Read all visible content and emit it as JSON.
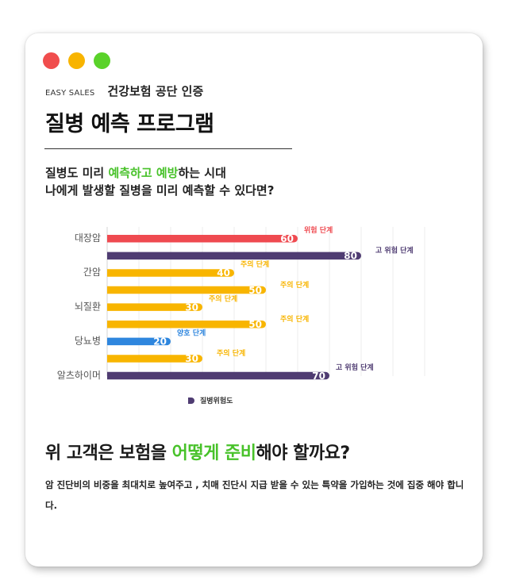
{
  "window_dots": [
    {
      "name": "close",
      "color": "#f04d4d"
    },
    {
      "name": "minimize",
      "color": "#f8b400"
    },
    {
      "name": "maximize",
      "color": "#5ad22a"
    }
  ],
  "header": {
    "brand": "EASY SALES",
    "certification": "건강보험 공단 인증",
    "title": "질병 예측 프로그램"
  },
  "intro": {
    "line1_pre": "질병도 미리 ",
    "line1_highlight": "예측하고 예방",
    "line1_post": "하는 시대",
    "line2": "나에게 발생할 질병을 미리 예측할 수 있다면?"
  },
  "chart_data": {
    "type": "bar",
    "orientation": "horizontal",
    "xlim": [
      0,
      100
    ],
    "grid": true,
    "legend": {
      "label": "질병위험도",
      "color": "#4f3c72",
      "position": "bottom"
    },
    "categories": [
      "대장암",
      "간암",
      "뇌질환",
      "당뇨병",
      "알츠하이머"
    ],
    "bars": [
      {
        "category": "대장암",
        "value": 60,
        "label": "위험 단계",
        "color": "#ef4a50"
      },
      {
        "category": "대장암",
        "value": 80,
        "label": "고 위험 단계",
        "color": "#4f3c72"
      },
      {
        "category": "간암",
        "value": 40,
        "label": "주의 단계",
        "color": "#f8b500"
      },
      {
        "category": "간암",
        "value": 50,
        "label": "주의 단계",
        "color": "#f8b500"
      },
      {
        "category": "뇌질환",
        "value": 30,
        "label": "주의 단계",
        "color": "#f8b500"
      },
      {
        "category": "뇌질환",
        "value": 50,
        "label": "주의 단계",
        "color": "#f8b500"
      },
      {
        "category": "당뇨병",
        "value": 20,
        "label": "양호 단계",
        "color": "#2e86de"
      },
      {
        "category": "당뇨병",
        "value": 30,
        "label": "주의 단계",
        "color": "#f8b500"
      },
      {
        "category": "알츠하이머",
        "value": 70,
        "label": "고 위험 단계",
        "color": "#4f3c72"
      }
    ]
  },
  "question": {
    "pre": "위 고객은 보험을 ",
    "highlight": "어떻게 준비",
    "post": "해야 할까요?"
  },
  "description": "암 진단비의 비중을 최대치로 높여주고 , 치매 진단시 지급 받을 수 있는 특약을 가입하는 것에 집중 해야 합니다.",
  "colors": {
    "accent_green": "#48c22a",
    "title": "#111111"
  }
}
